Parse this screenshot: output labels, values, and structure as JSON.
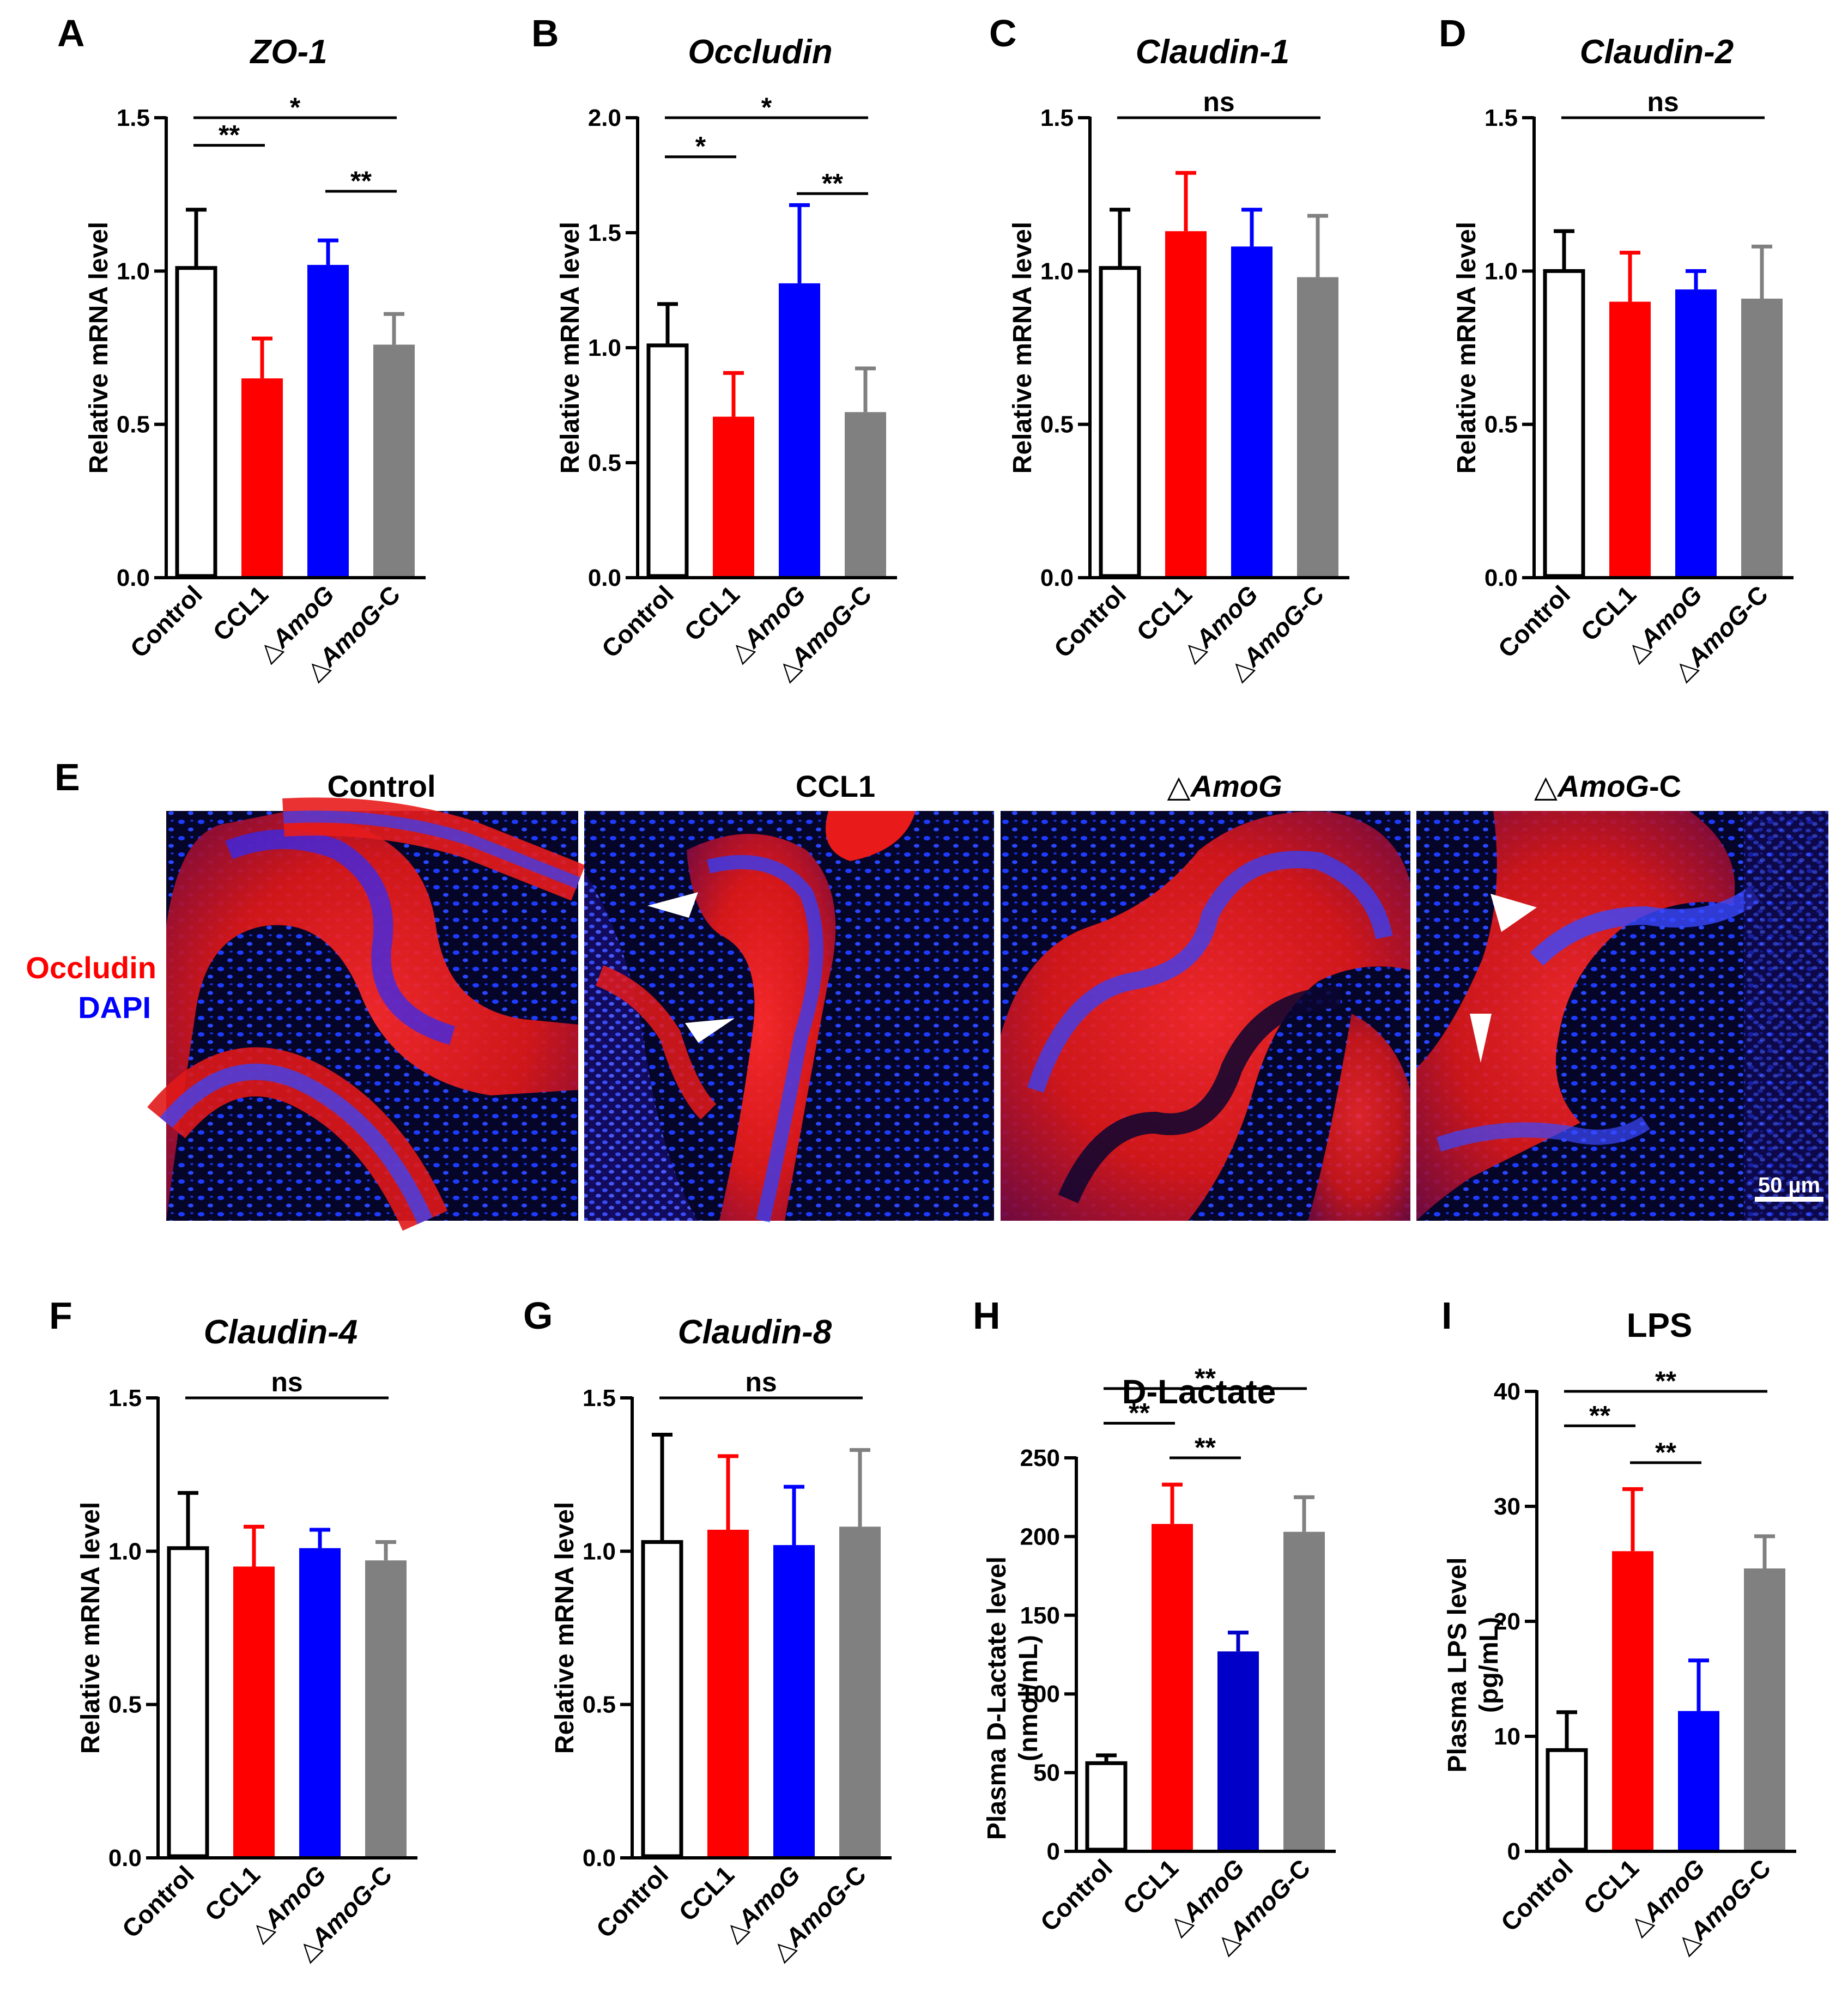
{
  "chart_data": [
    {
      "panel": "A",
      "type": "bar",
      "title": "ZO-1",
      "title_italic": true,
      "ylabel": "Relative mRNA level",
      "categories": [
        "Control",
        "CCL1",
        "△AmoG",
        "△AmoG-C"
      ],
      "values": [
        1.01,
        0.65,
        1.02,
        0.76
      ],
      "errors": [
        0.19,
        0.13,
        0.08,
        0.1
      ],
      "ylim": [
        0,
        1.5
      ],
      "yticks": [
        "0.0",
        "0.5",
        "1.0",
        "1.5"
      ],
      "significance": [
        {
          "from": 0,
          "to": 1,
          "label": "**",
          "y": 1.41
        },
        {
          "from": 2,
          "to": 3,
          "label": "**",
          "y": 1.26
        },
        {
          "from": 0,
          "to": 3,
          "label": "*",
          "y": 1.5
        }
      ]
    },
    {
      "panel": "B",
      "type": "bar",
      "title": "Occludin",
      "title_italic": true,
      "ylabel": "Relative mRNA level",
      "categories": [
        "Control",
        "CCL1",
        "△AmoG",
        "△AmoG-C"
      ],
      "values": [
        1.01,
        0.7,
        1.28,
        0.72
      ],
      "errors": [
        0.18,
        0.19,
        0.34,
        0.19
      ],
      "ylim": [
        0,
        2.0
      ],
      "yticks": [
        "0.0",
        "0.5",
        "1.0",
        "1.5",
        "2.0"
      ],
      "significance": [
        {
          "from": 0,
          "to": 1,
          "label": "*",
          "y": 1.83
        },
        {
          "from": 2,
          "to": 3,
          "label": "**",
          "y": 1.67
        },
        {
          "from": 0,
          "to": 3,
          "label": "*",
          "y": 2.0
        }
      ]
    },
    {
      "panel": "C",
      "type": "bar",
      "title": "Claudin-1",
      "title_italic": true,
      "ylabel": "Relative mRNA level",
      "categories": [
        "Control",
        "CCL1",
        "△AmoG",
        "△AmoG-C"
      ],
      "values": [
        1.01,
        1.13,
        1.08,
        0.98
      ],
      "errors": [
        0.19,
        0.19,
        0.12,
        0.2
      ],
      "ylim": [
        0,
        1.5
      ],
      "yticks": [
        "0.0",
        "0.5",
        "1.0",
        "1.5"
      ],
      "significance": [
        {
          "from": 0,
          "to": 3,
          "label": "ns",
          "y": 1.5
        }
      ]
    },
    {
      "panel": "D",
      "type": "bar",
      "title": "Claudin-2",
      "title_italic": true,
      "ylabel": "Relative mRNA level",
      "categories": [
        "Control",
        "CCL1",
        "△AmoG",
        "△AmoG-C"
      ],
      "values": [
        1.0,
        0.9,
        0.94,
        0.91
      ],
      "errors": [
        0.13,
        0.16,
        0.06,
        0.17
      ],
      "ylim": [
        0,
        1.5
      ],
      "yticks": [
        "0.0",
        "0.5",
        "1.0",
        "1.5"
      ],
      "significance": [
        {
          "from": 0,
          "to": 3,
          "label": "ns",
          "y": 1.5
        }
      ]
    },
    {
      "panel": "F",
      "type": "bar",
      "title": "Claudin-4",
      "title_italic": true,
      "ylabel": "Relative mRNA level",
      "categories": [
        "Control",
        "CCL1",
        "△AmoG",
        "△AmoG-C"
      ],
      "values": [
        1.01,
        0.95,
        1.01,
        0.97
      ],
      "errors": [
        0.18,
        0.13,
        0.06,
        0.06
      ],
      "ylim": [
        0,
        1.5
      ],
      "yticks": [
        "0.0",
        "0.5",
        "1.0",
        "1.5"
      ],
      "significance": [
        {
          "from": 0,
          "to": 3,
          "label": "ns",
          "y": 1.5
        }
      ]
    },
    {
      "panel": "G",
      "type": "bar",
      "title": "Claudin-8",
      "title_italic": true,
      "ylabel": "Relative mRNA level",
      "categories": [
        "Control",
        "CCL1",
        "△AmoG",
        "△AmoG-C"
      ],
      "values": [
        1.03,
        1.07,
        1.02,
        1.08
      ],
      "errors": [
        0.35,
        0.24,
        0.19,
        0.25
      ],
      "ylim": [
        0,
        1.5
      ],
      "yticks": [
        "0.0",
        "0.5",
        "1.0",
        "1.5"
      ],
      "significance": [
        {
          "from": 0,
          "to": 3,
          "label": "ns",
          "y": 1.5
        }
      ]
    },
    {
      "panel": "H",
      "type": "bar",
      "title": "D-Lactate",
      "title_italic": false,
      "ylabel": "Plasma D-Lactate level",
      "ylabel2": "(nmol/mL)",
      "categories": [
        "Control",
        "CCL1",
        "△AmoG",
        "△AmoG-C"
      ],
      "values": [
        56,
        208,
        127,
        203
      ],
      "errors": [
        5,
        25,
        12,
        22
      ],
      "ylim": [
        0,
        250
      ],
      "yticks": [
        "0",
        "50",
        "100",
        "150",
        "200",
        "250"
      ],
      "significance": [
        {
          "from": 0,
          "to": 1,
          "label": "**",
          "y": 272
        },
        {
          "from": 1,
          "to": 2,
          "label": "**",
          "y": 250
        },
        {
          "from": 0,
          "to": 3,
          "label": "**",
          "y": 294
        }
      ]
    },
    {
      "panel": "I",
      "type": "bar",
      "title": "LPS",
      "title_italic": false,
      "ylabel": "Plasma LPS level",
      "ylabel2": "(pg/mL)",
      "categories": [
        "Control",
        "CCL1",
        "△AmoG",
        "△AmoG-C"
      ],
      "values": [
        8.8,
        26.1,
        12.2,
        24.6
      ],
      "errors": [
        3.3,
        5.4,
        4.4,
        2.8
      ],
      "ylim": [
        0,
        40
      ],
      "yticks": [
        "0",
        "10",
        "20",
        "30",
        "40"
      ],
      "significance": [
        {
          "from": 0,
          "to": 1,
          "label": "**",
          "y": 37.0
        },
        {
          "from": 1,
          "to": 2,
          "label": "**",
          "y": 33.8
        },
        {
          "from": 0,
          "to": 3,
          "label": "**",
          "y": 40.0
        }
      ]
    }
  ],
  "colors": {
    "control": "#ffffff",
    "ccl1": "#ff0000",
    "amog": "#0000ff",
    "amog_c": "#808080",
    "h_amog": "#0000c8",
    "stain_occludin": "#ff0000",
    "stain_dapi": "#0000ff"
  },
  "panel_e": {
    "letter": "E",
    "headers": [
      "Control",
      "CCL1",
      "△AmoG",
      "△AmoG-C"
    ],
    "stain_labels": {
      "occludin": "Occludin",
      "dapi": "DAPI"
    },
    "scale_bar_label": "50 µm"
  }
}
